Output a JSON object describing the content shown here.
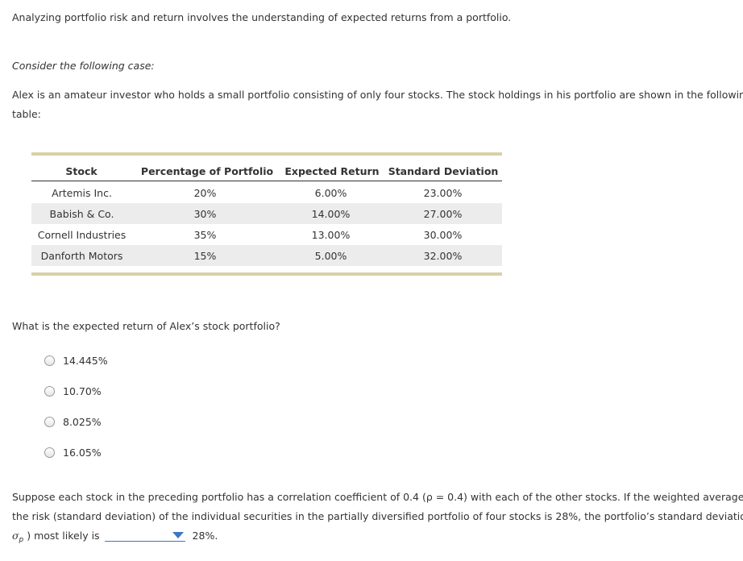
{
  "intro": "Analyzing portfolio risk and return involves the understanding of expected returns from a portfolio.",
  "consider": "Consider the following case:",
  "case_line1": "Alex is an amateur investor who holds a small portfolio consisting of only four stocks. The stock holdings in his portfolio are shown in the following",
  "case_line2": "table:",
  "table": {
    "headers": [
      "Stock",
      "Percentage of Portfolio",
      "Expected Return",
      "Standard Deviation"
    ],
    "rows": [
      [
        "Artemis Inc.",
        "20%",
        "6.00%",
        "23.00%"
      ],
      [
        "Babish & Co.",
        "30%",
        "14.00%",
        "27.00%"
      ],
      [
        "Cornell Industries",
        "35%",
        "13.00%",
        "30.00%"
      ],
      [
        "Danforth Motors",
        "15%",
        "5.00%",
        "32.00%"
      ]
    ]
  },
  "question1": "What is the expected return of Alex’s stock portfolio?",
  "options": [
    "14.445%",
    "10.70%",
    "8.025%",
    "16.05%"
  ],
  "q2_line1": "Suppose each stock in the preceding portfolio has a correlation coefficient of 0.4 (ρ = 0.4) with each of the other stocks. If the weighted average of",
  "q2_line2": "the risk (standard deviation) of the individual securities in the partially diversified portfolio of four stocks is 28%, the portfolio’s standard deviation (",
  "q2_sigma": "σ",
  "q2_sigma_sub": "p",
  "q2_line3_pre": ") most likely is",
  "q2_line3_post": "28%.",
  "dropdown_value": ""
}
